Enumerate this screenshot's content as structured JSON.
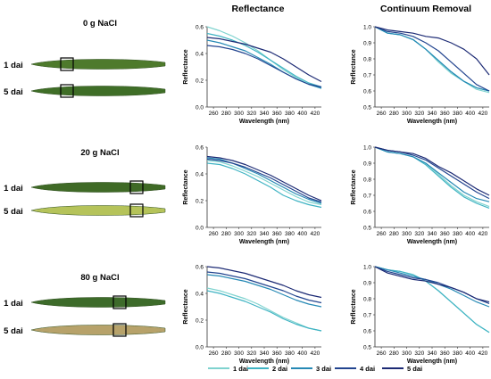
{
  "headers": {
    "reflectance": "Reflectance",
    "continuum": "Continuum Removal"
  },
  "treatments": [
    {
      "label": "0 g NaCl",
      "leaves": [
        {
          "label": "1 dai",
          "color": "#4e7a2c"
        },
        {
          "label": "5 dai",
          "color": "#3f6e27"
        }
      ]
    },
    {
      "label": "20 g NaCl",
      "leaves": [
        {
          "label": "1 dai",
          "color": "#3f6a26"
        },
        {
          "label": "5 dai",
          "color": "#b5c35a"
        }
      ]
    },
    {
      "label": "80 g NaCl",
      "leaves": [
        {
          "label": "1 dai",
          "color": "#3d6b2a"
        },
        {
          "label": "5 dai",
          "color": "#b7a26a"
        }
      ]
    }
  ],
  "series_colors": [
    "#7fd3cf",
    "#3fb3c3",
    "#2689b5",
    "#22448f",
    "#1c2a74"
  ],
  "legend": [
    "1 dai",
    "2 dai",
    "3 dai",
    "4 dai",
    "5 dai"
  ],
  "chart_data": [
    {
      "type": "line",
      "panel": "0 g NaCl — Reflectance",
      "xlabel": "Wavelength (nm)",
      "ylabel": "Reflectance",
      "xlim": [
        250,
        430
      ],
      "ylim": [
        0.0,
        0.6
      ],
      "xticks": [
        260,
        280,
        300,
        320,
        340,
        360,
        380,
        400,
        420
      ],
      "yticks": [
        0.0,
        0.2,
        0.4,
        0.6
      ],
      "ytick_labels": [
        "0.0",
        "0.2",
        "0.4",
        "0.6"
      ],
      "x": [
        250,
        270,
        290,
        310,
        330,
        350,
        370,
        390,
        410,
        430
      ],
      "series": [
        {
          "name": "1 dai",
          "values": [
            0.6,
            0.57,
            0.53,
            0.48,
            0.42,
            0.35,
            0.28,
            0.22,
            0.17,
            0.14
          ]
        },
        {
          "name": "2 dai",
          "values": [
            0.55,
            0.53,
            0.5,
            0.46,
            0.41,
            0.35,
            0.29,
            0.23,
            0.18,
            0.15
          ]
        },
        {
          "name": "3 dai",
          "values": [
            0.5,
            0.48,
            0.45,
            0.42,
            0.37,
            0.32,
            0.26,
            0.21,
            0.17,
            0.14
          ]
        },
        {
          "name": "4 dai",
          "values": [
            0.46,
            0.45,
            0.43,
            0.4,
            0.36,
            0.31,
            0.26,
            0.21,
            0.17,
            0.15
          ]
        },
        {
          "name": "5 dai",
          "values": [
            0.52,
            0.51,
            0.49,
            0.47,
            0.44,
            0.41,
            0.36,
            0.3,
            0.24,
            0.19
          ]
        }
      ]
    },
    {
      "type": "line",
      "panel": "0 g NaCl — Continuum Removal",
      "xlabel": "Wavelength (nm)",
      "ylabel": "Reflectance",
      "xlim": [
        250,
        430
      ],
      "ylim": [
        0.5,
        1.0
      ],
      "xticks": [
        260,
        280,
        300,
        320,
        340,
        360,
        380,
        400,
        420
      ],
      "yticks": [
        0.5,
        0.6,
        0.7,
        0.8,
        0.9,
        1.0
      ],
      "ytick_labels": [
        "0.5",
        "0.6",
        "0.7",
        "0.8",
        "0.9",
        "1.0"
      ],
      "x": [
        250,
        270,
        290,
        310,
        330,
        350,
        370,
        390,
        410,
        430
      ],
      "series": [
        {
          "name": "1 dai",
          "values": [
            1.0,
            0.96,
            0.95,
            0.92,
            0.86,
            0.78,
            0.71,
            0.66,
            0.61,
            0.59
          ]
        },
        {
          "name": "2 dai",
          "values": [
            1.0,
            0.96,
            0.95,
            0.92,
            0.86,
            0.79,
            0.72,
            0.66,
            0.62,
            0.6
          ]
        },
        {
          "name": "3 dai",
          "values": [
            1.0,
            0.96,
            0.95,
            0.92,
            0.86,
            0.79,
            0.72,
            0.66,
            0.62,
            0.6
          ]
        },
        {
          "name": "4 dai",
          "values": [
            1.0,
            0.97,
            0.96,
            0.94,
            0.9,
            0.85,
            0.78,
            0.71,
            0.64,
            0.6
          ]
        },
        {
          "name": "5 dai",
          "values": [
            1.0,
            0.98,
            0.97,
            0.96,
            0.94,
            0.93,
            0.9,
            0.86,
            0.8,
            0.7
          ]
        }
      ]
    },
    {
      "type": "line",
      "panel": "20 g NaCl — Reflectance",
      "xlabel": "Wavelength (nm)",
      "ylabel": "Reflectance",
      "xlim": [
        250,
        430
      ],
      "ylim": [
        0.0,
        0.6
      ],
      "xticks": [
        260,
        280,
        300,
        320,
        340,
        360,
        380,
        400,
        420
      ],
      "yticks": [
        0.0,
        0.2,
        0.4,
        0.6
      ],
      "ytick_labels": [
        "0.0",
        "0.2",
        "0.4",
        "0.6"
      ],
      "x": [
        250,
        270,
        290,
        310,
        330,
        350,
        370,
        390,
        410,
        430
      ],
      "series": [
        {
          "name": "1 dai",
          "values": [
            0.5,
            0.49,
            0.46,
            0.42,
            0.38,
            0.33,
            0.28,
            0.23,
            0.19,
            0.17
          ]
        },
        {
          "name": "2 dai",
          "values": [
            0.48,
            0.47,
            0.44,
            0.4,
            0.35,
            0.3,
            0.24,
            0.2,
            0.17,
            0.15
          ]
        },
        {
          "name": "3 dai",
          "values": [
            0.52,
            0.51,
            0.48,
            0.44,
            0.4,
            0.35,
            0.3,
            0.25,
            0.21,
            0.18
          ]
        },
        {
          "name": "4 dai",
          "values": [
            0.51,
            0.5,
            0.48,
            0.45,
            0.41,
            0.37,
            0.32,
            0.27,
            0.22,
            0.19
          ]
        },
        {
          "name": "5 dai",
          "values": [
            0.53,
            0.52,
            0.5,
            0.47,
            0.43,
            0.39,
            0.34,
            0.29,
            0.24,
            0.2
          ]
        }
      ]
    },
    {
      "type": "line",
      "panel": "20 g NaCl — Continuum Removal",
      "xlabel": "Wavelength (nm)",
      "ylabel": "Reflectance",
      "xlim": [
        250,
        430
      ],
      "ylim": [
        0.5,
        1.0
      ],
      "xticks": [
        260,
        280,
        300,
        320,
        340,
        360,
        380,
        400,
        420
      ],
      "yticks": [
        0.5,
        0.6,
        0.7,
        0.8,
        0.9,
        1.0
      ],
      "ytick_labels": [
        "0.5",
        "0.6",
        "0.7",
        "0.8",
        "0.9",
        "1.0"
      ],
      "x": [
        250,
        270,
        290,
        310,
        330,
        350,
        370,
        390,
        410,
        430
      ],
      "series": [
        {
          "name": "1 dai",
          "values": [
            1.0,
            0.97,
            0.96,
            0.94,
            0.9,
            0.83,
            0.76,
            0.7,
            0.66,
            0.63
          ]
        },
        {
          "name": "2 dai",
          "values": [
            1.0,
            0.97,
            0.96,
            0.94,
            0.89,
            0.82,
            0.75,
            0.69,
            0.65,
            0.62
          ]
        },
        {
          "name": "3 dai",
          "values": [
            1.0,
            0.97,
            0.96,
            0.94,
            0.9,
            0.84,
            0.78,
            0.72,
            0.68,
            0.66
          ]
        },
        {
          "name": "4 dai",
          "values": [
            1.0,
            0.98,
            0.97,
            0.95,
            0.92,
            0.87,
            0.82,
            0.77,
            0.72,
            0.68
          ]
        },
        {
          "name": "5 dai",
          "values": [
            1.0,
            0.98,
            0.97,
            0.96,
            0.93,
            0.88,
            0.84,
            0.79,
            0.74,
            0.7
          ]
        }
      ]
    },
    {
      "type": "line",
      "panel": "80 g NaCl — Reflectance",
      "xlabel": "Wavelength (nm)",
      "ylabel": "Reflectance",
      "xlim": [
        250,
        430
      ],
      "ylim": [
        0.0,
        0.6
      ],
      "xticks": [
        260,
        280,
        300,
        320,
        340,
        360,
        380,
        400,
        420
      ],
      "yticks": [
        0.0,
        0.2,
        0.4,
        0.6
      ],
      "ytick_labels": [
        "0.0",
        "0.2",
        "0.4",
        "0.6"
      ],
      "x": [
        250,
        270,
        290,
        310,
        330,
        350,
        370,
        390,
        410,
        430
      ],
      "series": [
        {
          "name": "1 dai",
          "values": [
            0.44,
            0.42,
            0.39,
            0.36,
            0.32,
            0.27,
            0.22,
            0.18,
            0.14,
            0.12
          ]
        },
        {
          "name": "2 dai",
          "values": [
            0.42,
            0.4,
            0.37,
            0.34,
            0.3,
            0.26,
            0.21,
            0.17,
            0.14,
            0.12
          ]
        },
        {
          "name": "3 dai",
          "values": [
            0.54,
            0.53,
            0.51,
            0.49,
            0.46,
            0.43,
            0.39,
            0.35,
            0.32,
            0.3
          ]
        },
        {
          "name": "4 dai",
          "values": [
            0.56,
            0.55,
            0.53,
            0.51,
            0.48,
            0.45,
            0.42,
            0.38,
            0.35,
            0.33
          ]
        },
        {
          "name": "5 dai",
          "values": [
            0.6,
            0.59,
            0.57,
            0.55,
            0.52,
            0.49,
            0.46,
            0.42,
            0.39,
            0.37
          ]
        }
      ]
    },
    {
      "type": "line",
      "panel": "80 g NaCl — Continuum Removal",
      "xlabel": "Wavelength (nm)",
      "ylabel": "Reflectance",
      "xlim": [
        250,
        430
      ],
      "ylim": [
        0.5,
        1.0
      ],
      "xticks": [
        260,
        280,
        300,
        320,
        340,
        360,
        380,
        400,
        420
      ],
      "yticks": [
        0.5,
        0.6,
        0.7,
        0.8,
        0.9,
        1.0
      ],
      "ytick_labels": [
        "0.5",
        "0.6",
        "0.7",
        "0.8",
        "0.9",
        "1.0"
      ],
      "x": [
        250,
        270,
        290,
        310,
        330,
        350,
        370,
        390,
        410,
        430
      ],
      "series": [
        {
          "name": "1 dai",
          "values": [
            1.0,
            0.98,
            0.97,
            0.95,
            0.91,
            0.85,
            0.78,
            0.71,
            0.64,
            0.59
          ]
        },
        {
          "name": "2 dai",
          "values": [
            1.0,
            0.98,
            0.97,
            0.95,
            0.91,
            0.85,
            0.78,
            0.71,
            0.64,
            0.59
          ]
        },
        {
          "name": "3 dai",
          "values": [
            1.0,
            0.98,
            0.96,
            0.94,
            0.92,
            0.89,
            0.86,
            0.82,
            0.78,
            0.75
          ]
        },
        {
          "name": "4 dai",
          "values": [
            1.0,
            0.97,
            0.95,
            0.93,
            0.92,
            0.9,
            0.87,
            0.84,
            0.8,
            0.77
          ]
        },
        {
          "name": "5 dai",
          "values": [
            1.0,
            0.96,
            0.94,
            0.92,
            0.91,
            0.89,
            0.87,
            0.84,
            0.8,
            0.78
          ]
        }
      ]
    }
  ]
}
